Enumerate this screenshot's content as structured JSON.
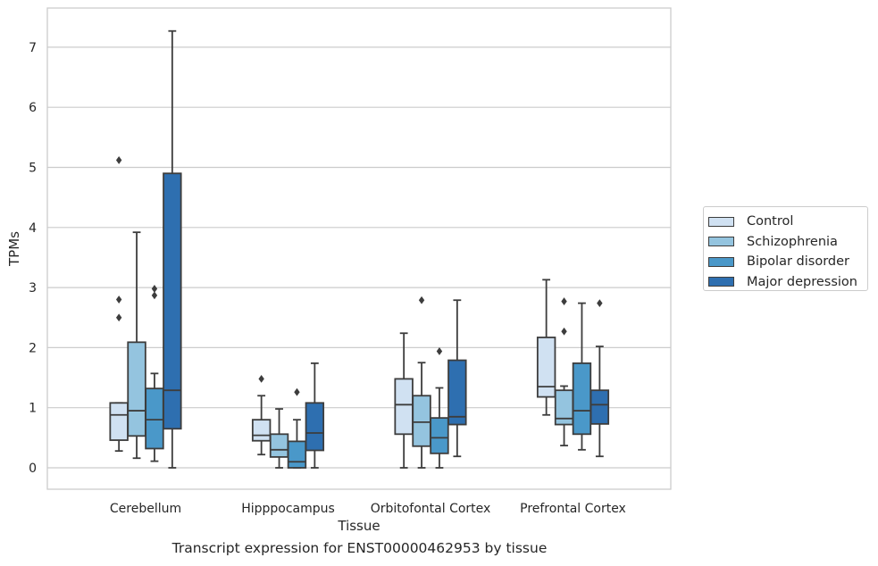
{
  "chart_data": {
    "type": "box",
    "title": "",
    "caption": "Transcript expression for ENST00000462953 by tissue",
    "xlabel": "Tissue",
    "ylabel": "TPMs",
    "ylim": [
      -0.35,
      7.7
    ],
    "yticks": [
      0,
      1,
      2,
      3,
      4,
      5,
      6,
      7
    ],
    "grid": "horizontal",
    "legend_position": "right",
    "categories": [
      "Cerebellum",
      "Hipppocampus",
      "Orbitofontal Cortex",
      "Prefrontal Cortex"
    ],
    "series": [
      {
        "name": "Control",
        "color": "#d0e1f2",
        "boxes": [
          {
            "whislo": 0.28,
            "q1": 0.46,
            "med": 0.88,
            "q3": 1.08,
            "whishi": 1.08,
            "fliers": [
              2.5,
              2.8,
              5.12
            ]
          },
          {
            "whislo": 0.22,
            "q1": 0.45,
            "med": 0.54,
            "q3": 0.8,
            "whishi": 1.2,
            "fliers": [
              1.48
            ]
          },
          {
            "whislo": 0.0,
            "q1": 0.56,
            "med": 1.05,
            "q3": 1.48,
            "whishi": 2.24,
            "fliers": []
          },
          {
            "whislo": 0.88,
            "q1": 1.18,
            "med": 1.35,
            "q3": 2.17,
            "whishi": 3.13,
            "fliers": []
          }
        ]
      },
      {
        "name": "Schizophrenia",
        "color": "#94c4df",
        "boxes": [
          {
            "whislo": 0.16,
            "q1": 0.53,
            "med": 0.95,
            "q3": 2.09,
            "whishi": 3.92,
            "fliers": []
          },
          {
            "whislo": 0.0,
            "q1": 0.18,
            "med": 0.3,
            "q3": 0.56,
            "whishi": 0.98,
            "fliers": []
          },
          {
            "whislo": 0.0,
            "q1": 0.36,
            "med": 0.76,
            "q3": 1.2,
            "whishi": 1.75,
            "fliers": [
              2.79
            ]
          },
          {
            "whislo": 0.37,
            "q1": 0.72,
            "med": 0.82,
            "q3": 1.29,
            "whishi": 1.36,
            "fliers": [
              2.27,
              2.77
            ]
          }
        ]
      },
      {
        "name": "Bipolar disorder",
        "color": "#4a98c9",
        "boxes": [
          {
            "whislo": 0.11,
            "q1": 0.32,
            "med": 0.8,
            "q3": 1.32,
            "whishi": 1.57,
            "fliers": [
              2.87,
              2.98
            ]
          },
          {
            "whislo": 0.0,
            "q1": 0.0,
            "med": 0.1,
            "q3": 0.44,
            "whishi": 0.8,
            "fliers": [
              1.26
            ]
          },
          {
            "whislo": 0.0,
            "q1": 0.24,
            "med": 0.5,
            "q3": 0.83,
            "whishi": 1.33,
            "fliers": [
              1.94
            ]
          },
          {
            "whislo": 0.3,
            "q1": 0.56,
            "med": 0.95,
            "q3": 1.74,
            "whishi": 2.74,
            "fliers": []
          }
        ]
      },
      {
        "name": "Major depression",
        "color": "#2e6fb0",
        "boxes": [
          {
            "whislo": 0.0,
            "q1": 0.65,
            "med": 1.29,
            "q3": 4.9,
            "whishi": 7.27,
            "fliers": []
          },
          {
            "whislo": 0.0,
            "q1": 0.29,
            "med": 0.58,
            "q3": 1.08,
            "whishi": 1.74,
            "fliers": []
          },
          {
            "whislo": 0.19,
            "q1": 0.72,
            "med": 0.85,
            "q3": 1.79,
            "whishi": 2.79,
            "fliers": []
          },
          {
            "whislo": 0.19,
            "q1": 0.73,
            "med": 1.05,
            "q3": 1.29,
            "whishi": 2.02,
            "fliers": [
              2.74
            ]
          }
        ]
      }
    ]
  }
}
